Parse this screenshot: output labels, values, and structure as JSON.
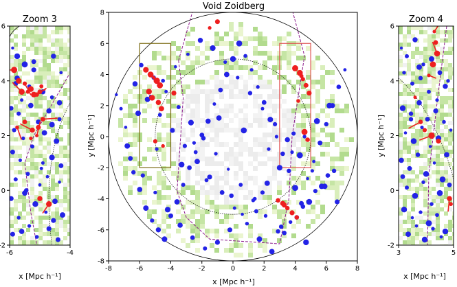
{
  "chart_data": [
    {
      "type": "scatter",
      "title": "Zoom 3",
      "xlabel": "x [Mpc h⁻¹]",
      "ylabel": "",
      "xlim": [
        -6,
        -4
      ],
      "ylim": [
        -2,
        6
      ],
      "xticks": [
        "-6",
        "-4"
      ],
      "yticks": [
        "-2",
        "0",
        "2",
        "4",
        "6"
      ],
      "grid": false,
      "series": [
        {
          "marker_color": "#2323e6",
          "x": [
            -5.9,
            -5.75,
            -5.5,
            -5.2,
            -4.55,
            -4.3,
            -5.8,
            -5.6,
            -5.35,
            -4.9,
            -4.6,
            -5.95,
            -5.7,
            -5.3,
            -5.05,
            -4.7,
            -4.35,
            -5.85,
            -5.55,
            -4.85,
            -4.45,
            -5.9,
            -5.65,
            -5.25,
            -4.95,
            -4.6,
            -4.3,
            -5.8,
            -5.4,
            -5.0,
            -4.75,
            -4.35,
            -5.95,
            -5.5,
            -5.15,
            -4.8,
            -4.5,
            -5.7,
            -5.35,
            -4.55,
            -4.25,
            -5.9,
            -5.6,
            -5.1,
            -4.7,
            -4.4,
            -5.45,
            -4.9,
            -4.6,
            -5.75,
            -4.35,
            -5.2
          ],
          "y": [
            5.2,
            4.9,
            4.6,
            4.4,
            4.9,
            4.3,
            3.9,
            3.3,
            3.8,
            3.6,
            3.4,
            3.0,
            2.8,
            3.1,
            2.5,
            2.9,
            3.2,
            2.2,
            1.9,
            2.1,
            1.8,
            1.4,
            1.1,
            1.6,
            0.8,
            1.2,
            0.9,
            0.4,
            0.6,
            0.2,
            0.5,
            0.3,
            -0.3,
            -0.1,
            -0.5,
            -0.8,
            -0.4,
            -1.0,
            -1.3,
            -1.1,
            -0.9,
            -1.6,
            -1.5,
            -1.7,
            -1.4,
            -1.8,
            0.0,
            1.0,
            2.4,
            4.1,
            2.6,
            4.7
          ]
        },
        {
          "marker_color": "#ee1f1f",
          "x": [
            -5.85,
            -5.7,
            -5.5,
            -5.3,
            -5.1,
            -4.95,
            -5.6,
            -5.4,
            -5.2,
            -5.0,
            -5.75,
            -5.5,
            -5.25,
            -5.05,
            -4.9,
            -5.3,
            -5.1,
            -5.0,
            -4.7
          ],
          "y": [
            4.4,
            4.0,
            3.9,
            3.7,
            3.5,
            3.8,
            3.6,
            3.6,
            3.5,
            3.6,
            2.3,
            2.5,
            2.2,
            2.3,
            2.6,
            1.9,
            2.0,
            -0.3,
            -0.5
          ]
        }
      ]
    },
    {
      "type": "scatter",
      "title": "Void Zoidberg",
      "xlabel": "x [Mpc h⁻¹]",
      "ylabel": "y [Mpc h⁻¹]",
      "xlim": [
        -8,
        8
      ],
      "ylim": [
        -8,
        8
      ],
      "xticks": [
        "-8",
        "-6",
        "-4",
        "-2",
        "0",
        "2",
        "4",
        "6",
        "8"
      ],
      "yticks": [
        "-8",
        "-6",
        "-4",
        "-2",
        "0",
        "2",
        "4",
        "6",
        "8"
      ],
      "grid": false,
      "series": [
        {
          "marker_color": "#2323e6",
          "x": [
            -7.5,
            -7.2,
            -6.8,
            -6.4,
            -6.0,
            -5.6,
            -5.2,
            -4.8,
            -4.4,
            -4.0,
            -3.6,
            -3.2,
            -2.8,
            -2.4,
            -2.0,
            -1.6,
            -1.2,
            -0.8,
            -0.4,
            0.0,
            0.4,
            0.8,
            1.2,
            1.6,
            2.0,
            2.4,
            2.8,
            3.2,
            3.6,
            4.0,
            4.4,
            4.8,
            5.2,
            5.6,
            6.0,
            6.4,
            6.8,
            7.2,
            -6.9,
            -6.1,
            -5.3,
            -4.5,
            -3.7,
            -2.9,
            -2.1,
            -1.3,
            -0.5,
            0.3,
            1.1,
            1.9,
            2.7,
            3.5,
            4.3,
            5.1,
            5.9,
            6.7,
            -6.6,
            -5.8,
            -5.0,
            -4.2,
            -3.4,
            -2.6,
            -1.8,
            -1.0,
            -0.2,
            0.6,
            1.4,
            2.2,
            3.0,
            3.8,
            4.6,
            5.4,
            6.2,
            -6.3,
            -5.5,
            -4.7,
            -3.9,
            -3.1,
            -2.3,
            -1.5,
            -0.7,
            0.1,
            0.9,
            1.7,
            2.5,
            3.3,
            4.1,
            4.9,
            5.7,
            6.5,
            -5.9,
            -5.1,
            -4.3,
            -3.5,
            -2.7,
            -1.9,
            -1.1,
            -0.3,
            0.5,
            1.3,
            2.1,
            2.9,
            3.7,
            4.5,
            5.3,
            6.1,
            -4.9,
            -3.3,
            -1.7,
            -0.1,
            1.5,
            3.1,
            4.7,
            -2.5,
            0.7,
            2.3,
            3.9,
            -0.9,
            1.9
          ],
          "y": [
            2.7,
            1.8,
            -0.6,
            -2.3,
            -3.4,
            -4.6,
            -5.4,
            -6.0,
            -6.6,
            -5.1,
            -4.2,
            -3.1,
            -2.0,
            -1.0,
            0.1,
            1.0,
            2.1,
            3.0,
            4.0,
            5.0,
            6.0,
            5.2,
            4.3,
            3.2,
            2.2,
            1.1,
            0.0,
            -1.1,
            -2.2,
            -3.3,
            -4.3,
            -2.7,
            -1.6,
            -0.4,
            0.8,
            2.0,
            3.2,
            4.3,
            0.6,
            1.5,
            2.6,
            3.6,
            4.5,
            5.3,
            6.2,
            5.7,
            4.8,
            3.8,
            2.8,
            1.8,
            0.8,
            -0.2,
            -1.2,
            -2.2,
            -3.2,
            -4.2,
            -1.4,
            -2.5,
            -3.6,
            -4.7,
            -5.7,
            -6.5,
            -7.2,
            -6.8,
            -6.0,
            -5.0,
            -4.0,
            -3.0,
            -2.0,
            -1.0,
            0.0,
            1.0,
            2.0,
            3.4,
            2.4,
            1.4,
            0.4,
            -0.6,
            -1.6,
            -2.6,
            -3.6,
            -4.6,
            -5.6,
            -6.6,
            -7.4,
            -6.2,
            -5.2,
            -4.2,
            -3.2,
            -2.2,
            4.6,
            3.8,
            2.9,
            1.9,
            0.9,
            -0.1,
            -1.1,
            -2.1,
            -3.1,
            -4.1,
            -5.1,
            -6.1,
            -5.5,
            -4.5,
            -3.5,
            -2.5,
            -0.8,
            -1.8,
            -2.8,
            -3.8,
            -4.8,
            -5.8,
            -6.8,
            -0.4,
            0.4,
            -0.8,
            0.2,
            1.2,
            -3.6
          ]
        },
        {
          "marker_color": "#ee1f1f",
          "x": [
            -5.6,
            -5.3,
            -5.1,
            -4.9,
            -4.7,
            -5.4,
            -5.2,
            -4.8,
            -4.6,
            -5.0,
            -4.5,
            4.0,
            4.3,
            4.5,
            4.7,
            4.9,
            4.2,
            4.6,
            4.8,
            3.2,
            3.5,
            3.8,
            4.1,
            2.9,
            3.3,
            -3.8,
            -1.5,
            -1.0,
            4.4
          ],
          "y": [
            4.3,
            4.0,
            3.8,
            3.6,
            3.3,
            2.9,
            2.5,
            2.2,
            1.8,
            -0.3,
            -0.6,
            4.4,
            4.1,
            3.7,
            3.3,
            2.8,
            2.3,
            0.3,
            -0.2,
            -4.3,
            -4.6,
            -4.9,
            -5.2,
            -4.1,
            -4.4,
            2.8,
            7.0,
            7.4,
            3.9
          ]
        }
      ]
    },
    {
      "type": "scatter",
      "title": "Zoom 4",
      "xlabel": "x [Mpc h⁻¹]",
      "ylabel": "y [Mpc h⁻¹]",
      "xlim": [
        3,
        5
      ],
      "ylim": [
        -2,
        6
      ],
      "xticks": [
        "3",
        "5"
      ],
      "yticks": [
        "-2",
        "0",
        "2",
        "4",
        "6"
      ],
      "grid": false,
      "series": [
        {
          "marker_color": "#2323e6",
          "x": [
            3.1,
            3.3,
            3.6,
            3.9,
            4.2,
            4.5,
            4.8,
            3.2,
            3.5,
            3.8,
            4.1,
            4.4,
            4.7,
            3.15,
            3.45,
            3.75,
            4.05,
            4.35,
            4.65,
            4.9,
            3.25,
            3.55,
            3.85,
            4.15,
            4.45,
            4.75,
            3.1,
            3.4,
            3.7,
            4.0,
            4.3,
            4.6,
            4.85,
            3.3,
            3.6,
            3.9,
            4.2,
            4.5,
            3.2,
            3.5,
            3.8,
            4.1,
            4.4,
            4.7,
            3.35,
            3.65,
            3.95,
            4.25,
            4.55,
            3.15,
            3.45,
            3.75
          ],
          "y": [
            5.2,
            4.9,
            5.5,
            4.6,
            4.8,
            4.3,
            4.0,
            4.3,
            3.9,
            4.1,
            3.6,
            3.3,
            3.8,
            3.0,
            2.8,
            3.2,
            2.6,
            2.9,
            2.5,
            2.2,
            2.1,
            1.8,
            2.3,
            1.6,
            1.9,
            1.3,
            1.1,
            0.8,
            1.3,
            0.6,
            1.0,
            0.4,
            0.2,
            0.1,
            -0.2,
            0.3,
            -0.5,
            -0.1,
            -0.7,
            -1.0,
            -0.8,
            -1.2,
            -0.9,
            -1.5,
            -1.6,
            -1.3,
            -1.8,
            -1.4,
            -1.7,
            0.5,
            2.6,
            4.5
          ]
        },
        {
          "marker_color": "#ee1f1f",
          "x": [
            4.3,
            4.35,
            4.4,
            4.25,
            4.1,
            3.6,
            3.8,
            3.95,
            4.2,
            4.45,
            4.85,
            4.9
          ],
          "y": [
            5.8,
            5.4,
            5.0,
            4.6,
            4.2,
            3.4,
            2.5,
            2.2,
            2.0,
            1.8,
            -0.3,
            -0.5
          ]
        }
      ]
    }
  ]
}
